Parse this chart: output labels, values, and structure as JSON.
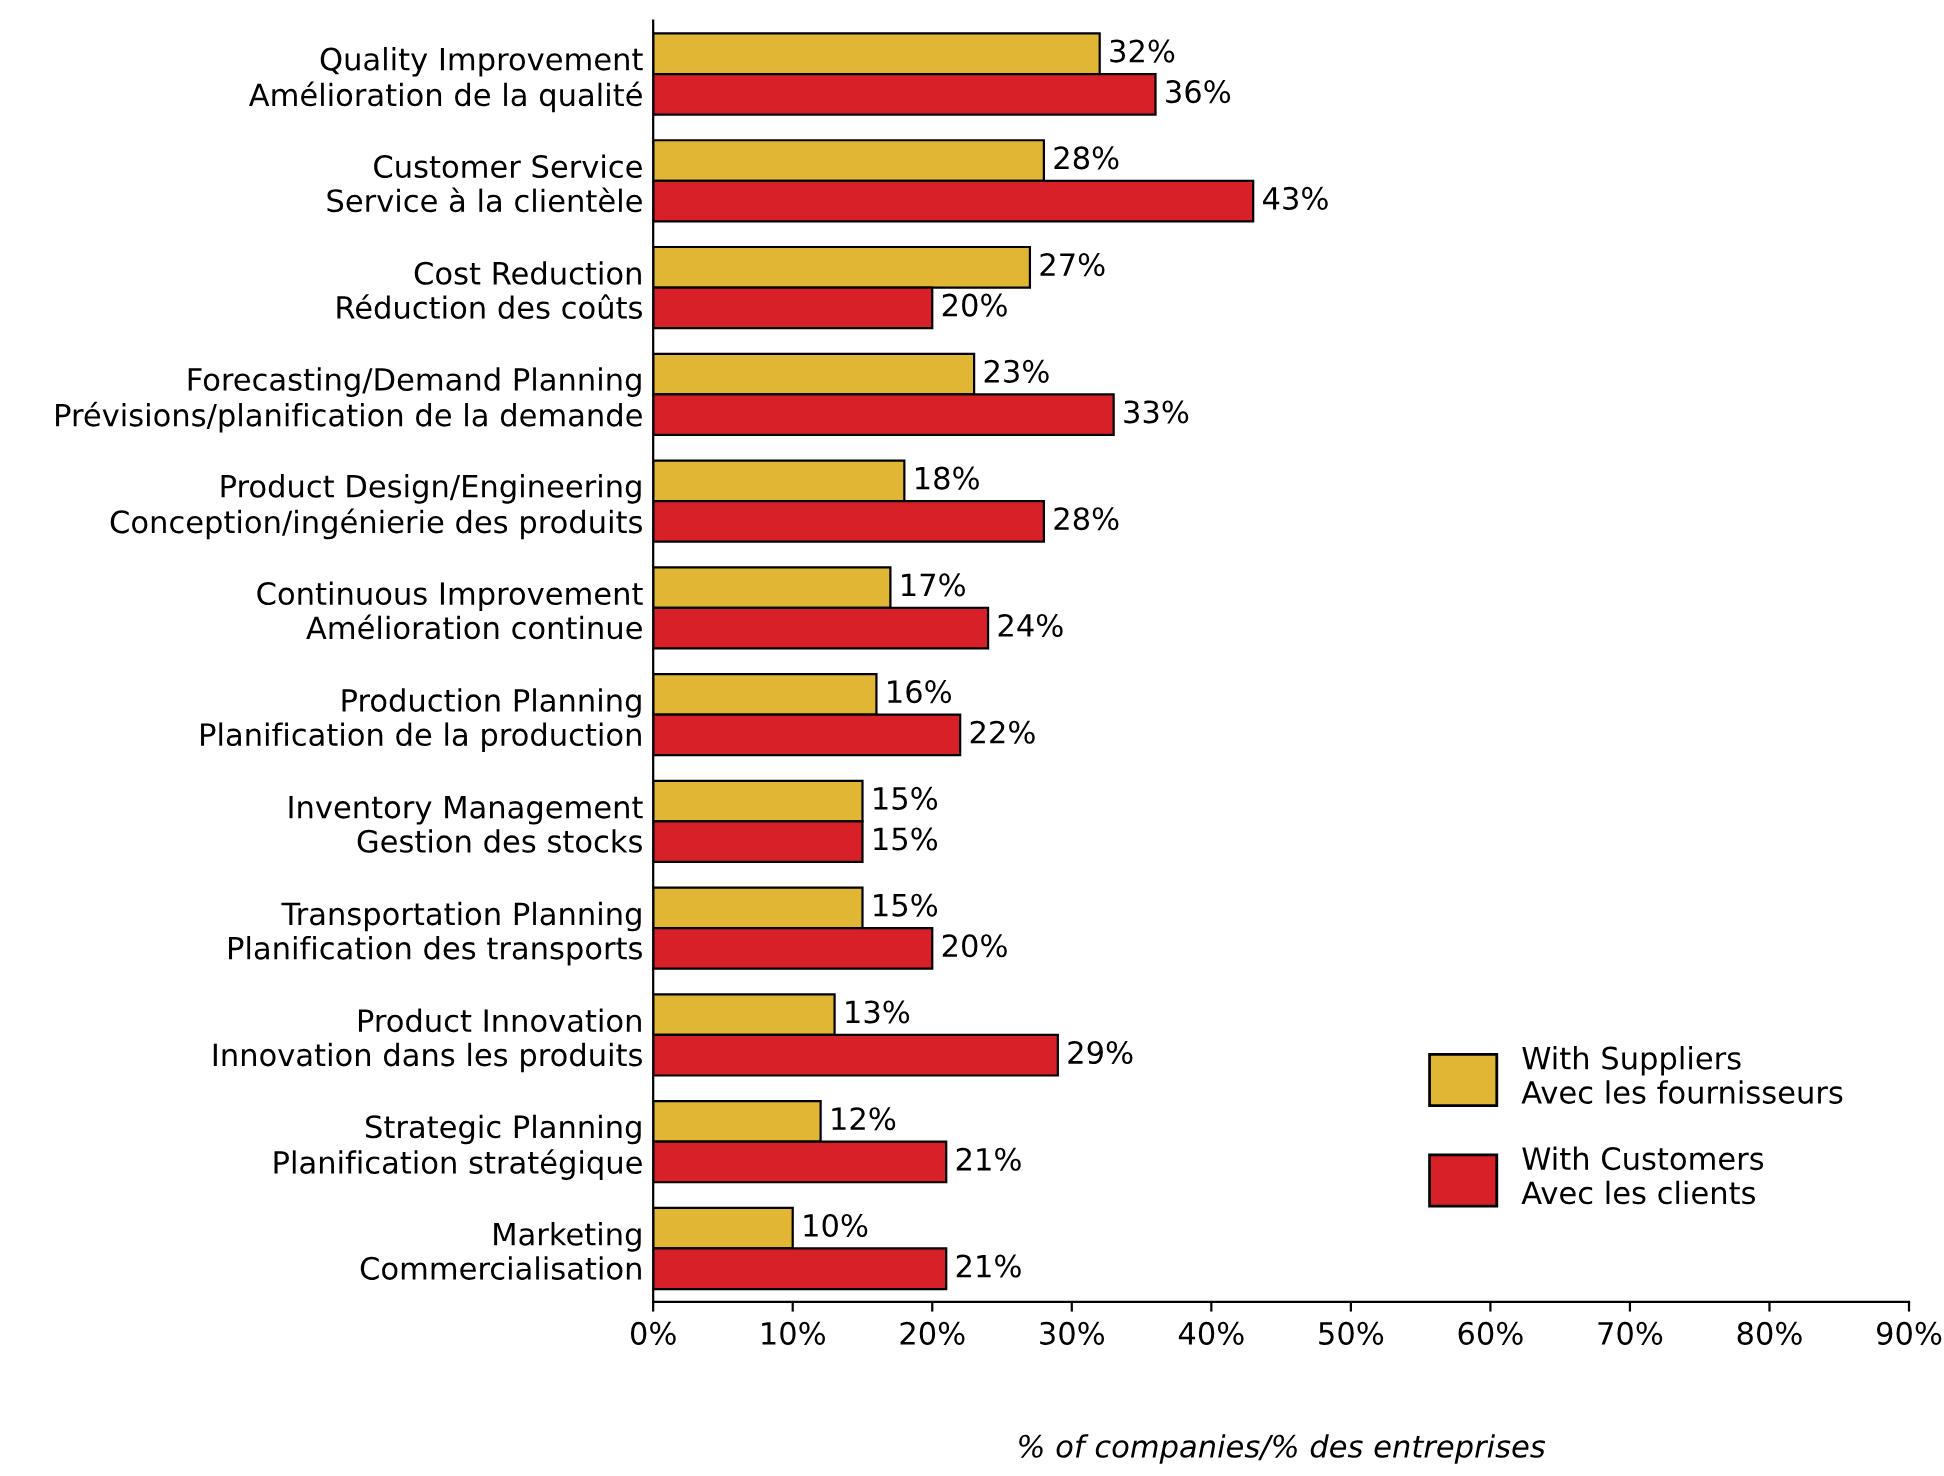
{
  "chart_data": {
    "type": "bar",
    "orientation": "horizontal",
    "xlabel": "% of companies/% des entreprises",
    "categories": [
      "Quality Improvement\nAmélioration de la qualité",
      "Customer Service\nService à la clientèle",
      "Cost Reduction\nRéduction des coûts",
      "Forecasting/Demand Planning\nPrévisions/planification de la demande",
      "Product Design/Engineering\nConception/ingénierie des produits",
      "Continuous Improvement\nAmélioration continue",
      "Production Planning\nPlanification de la production",
      "Inventory Management\nGestion des stocks",
      "Transportation Planning\nPlanification des transports",
      "Product Innovation\nInnovation dans les produits",
      "Strategic Planning\nPlanification stratégique",
      "Marketing\nCommercialisation"
    ],
    "series": [
      {
        "name": "With Suppliers\nAvec les fournisseurs",
        "color": "#e0b634",
        "values": [
          32,
          28,
          27,
          23,
          18,
          17,
          16,
          15,
          15,
          13,
          12,
          10
        ],
        "value_labels": [
          "32%",
          "28%",
          "27%",
          "23%",
          "18%",
          "17%",
          "16%",
          "15%",
          "15%",
          "13%",
          "12%",
          "10%"
        ]
      },
      {
        "name": "With Customers\nAvec les clients",
        "color": "#d82028",
        "values": [
          36,
          43,
          20,
          33,
          28,
          24,
          22,
          15,
          20,
          29,
          21,
          21
        ],
        "value_labels": [
          "36%",
          "43%",
          "20%",
          "33%",
          "28%",
          "24%",
          "22%",
          "15%",
          "20%",
          "29%",
          "21%",
          "21%"
        ]
      }
    ],
    "xlim": [
      0,
      90
    ],
    "xticks": [
      {
        "value": 0,
        "label": "0%"
      },
      {
        "value": 10,
        "label": "10%"
      },
      {
        "value": 20,
        "label": "20%"
      },
      {
        "value": 30,
        "label": "30%"
      },
      {
        "value": 40,
        "label": "40%"
      },
      {
        "value": 50,
        "label": "50%"
      },
      {
        "value": 60,
        "label": "60%"
      },
      {
        "value": 70,
        "label": "70%"
      },
      {
        "value": 80,
        "label": "80%"
      },
      {
        "value": 90,
        "label": "90%"
      }
    ],
    "legend": "bottom right",
    "grid": false
  }
}
